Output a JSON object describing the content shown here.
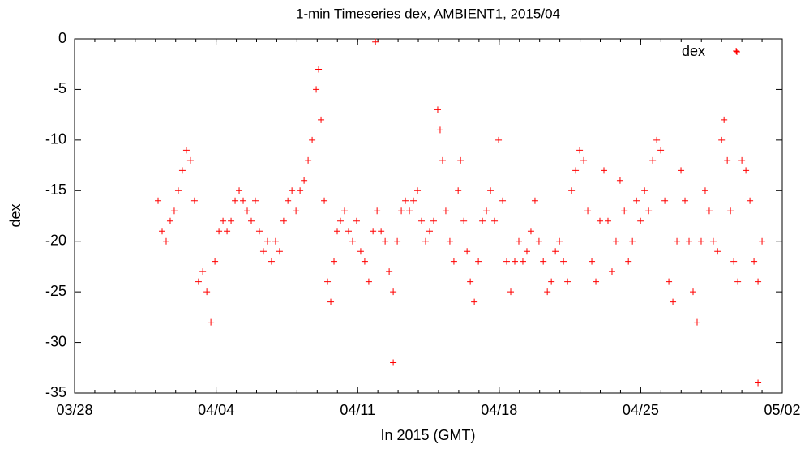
{
  "chart_data": {
    "type": "scatter",
    "title": "1-min Timeseries dex, AMBIENT1, 2015/04",
    "x_label": "In 2015 (GMT)",
    "y_label": "dex",
    "xlim": [
      0,
      35
    ],
    "xticks": [
      {
        "value": 0,
        "label": "03/28"
      },
      {
        "value": 7,
        "label": "04/04"
      },
      {
        "value": 14,
        "label": "04/11"
      },
      {
        "value": 21,
        "label": "04/18"
      },
      {
        "value": 28,
        "label": "04/25"
      },
      {
        "value": 35,
        "label": "05/02"
      }
    ],
    "ylim": [
      -35,
      0
    ],
    "yticks": [
      -35,
      -30,
      -25,
      -20,
      -15,
      -10,
      -5,
      0
    ],
    "legend": "top-right",
    "series": [
      {
        "name": "dex",
        "color": "#ff0000",
        "x": [
          4.13,
          4.33,
          4.53,
          4.73,
          4.93,
          5.13,
          5.33,
          5.53,
          5.73,
          5.93,
          6.13,
          6.34,
          6.54,
          6.74,
          6.94,
          7.14,
          7.34,
          7.54,
          7.74,
          7.94,
          8.14,
          8.34,
          8.54,
          8.74,
          8.94,
          9.14,
          9.34,
          9.54,
          9.74,
          9.94,
          10.14,
          10.34,
          10.55,
          10.75,
          10.95,
          11.15,
          11.35,
          11.55,
          11.75,
          11.95,
          12.07,
          12.19,
          12.35,
          12.51,
          12.67,
          12.83,
          12.99,
          13.15,
          13.35,
          13.55,
          13.75,
          13.95,
          14.15,
          14.35,
          14.55,
          14.76,
          14.96,
          15.16,
          15.36,
          15.56,
          15.76,
          15.96,
          16.16,
          16.36,
          16.56,
          16.76,
          16.96,
          17.16,
          17.36,
          17.56,
          17.76,
          17.96,
          18.08,
          18.2,
          18.36,
          18.56,
          18.76,
          18.97,
          19.09,
          19.25,
          19.41,
          19.57,
          19.77,
          19.97,
          20.17,
          20.37,
          20.57,
          20.77,
          20.97,
          21.17,
          21.37,
          21.57,
          21.77,
          21.97,
          22.17,
          22.37,
          22.57,
          22.77,
          22.97,
          23.18,
          23.38,
          23.58,
          23.78,
          23.98,
          24.18,
          24.38,
          24.58,
          24.78,
          24.98,
          25.18,
          25.38,
          25.58,
          25.78,
          25.98,
          26.18,
          26.38,
          26.58,
          26.78,
          26.98,
          27.19,
          27.39,
          27.59,
          27.79,
          27.99,
          28.19,
          28.39,
          28.59,
          28.79,
          28.99,
          29.19,
          29.39,
          29.59,
          29.79,
          29.99,
          30.19,
          30.39,
          30.59,
          30.79,
          30.99,
          31.19,
          31.39,
          31.59,
          31.8,
          32.0,
          32.12,
          32.28,
          32.44,
          32.6,
          32.8,
          33.0,
          33.2,
          33.4,
          33.6,
          33.8,
          34.0,
          14.88,
          15.76,
          32.72,
          33.8
        ],
        "values": [
          -16,
          -19,
          -20,
          -18,
          -17,
          -15,
          -13,
          -11,
          -12,
          -16,
          -24,
          -23,
          -25,
          -28,
          -22,
          -19,
          -18,
          -19,
          -18,
          -16,
          -15,
          -16,
          -17,
          -18,
          -16,
          -19,
          -21,
          -20,
          -22,
          -20,
          -21,
          -18,
          -16,
          -15,
          -17,
          -15,
          -14,
          -12,
          -10,
          -5,
          -3,
          -8,
          -16,
          -24,
          -26,
          -22,
          -19,
          -18,
          -17,
          -19,
          -20,
          -18,
          -21,
          -22,
          -24,
          -19,
          -17,
          -19,
          -20,
          -23,
          -25,
          -20,
          -17,
          -16,
          -17,
          -16,
          -15,
          -18,
          -20,
          -19,
          -18,
          -7,
          -9,
          -12,
          -17,
          -20,
          -22,
          -15,
          -12,
          -18,
          -21,
          -24,
          -26,
          -22,
          -18,
          -17,
          -15,
          -18,
          -10,
          -16,
          -22,
          -25,
          -22,
          -20,
          -22,
          -21,
          -19,
          -16,
          -20,
          -22,
          -25,
          -24,
          -21,
          -20,
          -22,
          -24,
          -15,
          -13,
          -11,
          -12,
          -17,
          -22,
          -24,
          -18,
          -13,
          -18,
          -23,
          -20,
          -14,
          -17,
          -22,
          -20,
          -16,
          -18,
          -15,
          -17,
          -12,
          -10,
          -11,
          -16,
          -24,
          -26,
          -20,
          -13,
          -16,
          -20,
          -25,
          -28,
          -20,
          -15,
          -17,
          -20,
          -21,
          -10,
          -8,
          -12,
          -17,
          -22,
          -24,
          -12,
          -13,
          -16,
          -22,
          -24,
          -20,
          -0.3,
          -32,
          -1.2,
          -34
        ]
      }
    ]
  }
}
